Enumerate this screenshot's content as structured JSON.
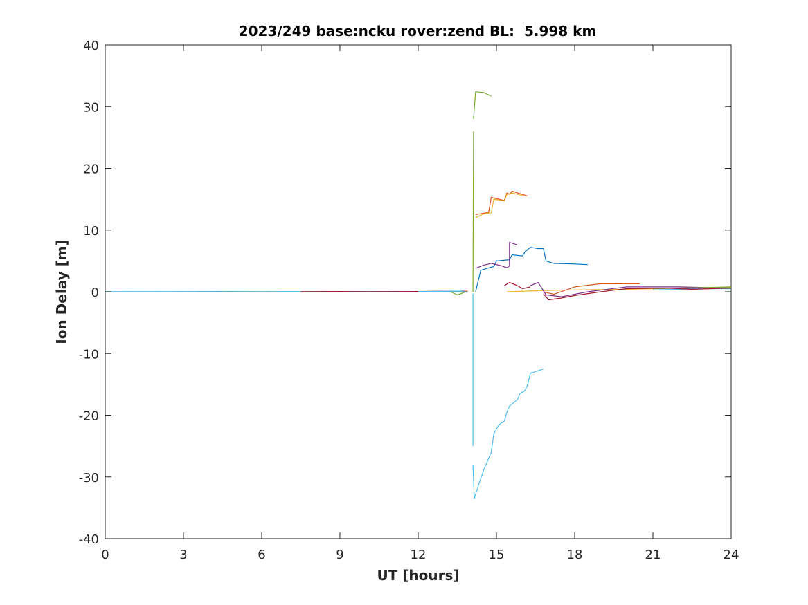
{
  "chart_data": {
    "type": "line",
    "title": "2023/249 base:ncku rover:zend BL:  5.998 km",
    "xlabel": "UT [hours]",
    "ylabel": "Ion Delay [m]",
    "xlim": [
      0,
      24
    ],
    "ylim": [
      -40,
      40
    ],
    "xticks": [
      0,
      3,
      6,
      9,
      12,
      15,
      18,
      21,
      24
    ],
    "yticks": [
      -40,
      -30,
      -20,
      -10,
      0,
      10,
      20,
      30,
      40
    ],
    "grid": false,
    "legend": "none",
    "series": [
      {
        "color": "#0072BD",
        "segments": [
          [
            [
              0,
              0
            ],
            [
              2.5,
              0
            ],
            [
              4.8,
              0.05
            ],
            [
              6,
              0
            ],
            [
              9,
              0.02
            ],
            [
              12,
              0.03
            ],
            [
              13.8,
              0.1
            ]
          ],
          [
            [
              14.2,
              0
            ],
            [
              14.4,
              3.5
            ],
            [
              14.8,
              4.0
            ],
            [
              14.9,
              4.1
            ],
            [
              15.0,
              5.0
            ],
            [
              15.5,
              5.2
            ],
            [
              15.6,
              6.0
            ],
            [
              16.0,
              5.8
            ],
            [
              16.1,
              6.5
            ],
            [
              16.3,
              7.2
            ],
            [
              16.6,
              7.0
            ],
            [
              16.8,
              7.0
            ],
            [
              16.9,
              5.0
            ],
            [
              17.2,
              4.6
            ],
            [
              18.0,
              4.5
            ],
            [
              18.5,
              4.4
            ]
          ],
          [
            [
              20.5,
              0.5
            ],
            [
              21.5,
              0.6
            ],
            [
              22.5,
              0.5
            ],
            [
              23.5,
              0.6
            ],
            [
              24,
              0.5
            ]
          ]
        ]
      },
      {
        "color": "#D95319",
        "segments": [
          [
            [
              12,
              0.05
            ],
            [
              13.9,
              0.1
            ]
          ],
          [
            [
              14.2,
              12.5
            ],
            [
              14.6,
              12.8
            ],
            [
              14.7,
              12.9
            ],
            [
              14.8,
              15.3
            ],
            [
              15.3,
              14.8
            ],
            [
              15.4,
              16.0
            ],
            [
              15.5,
              15.8
            ],
            [
              15.6,
              16.3
            ],
            [
              16.2,
              15.5
            ]
          ],
          [
            [
              16.8,
              0
            ],
            [
              17.2,
              -0.4
            ],
            [
              18.0,
              0.8
            ],
            [
              19.0,
              1.3
            ],
            [
              20.5,
              1.3
            ]
          ],
          [
            [
              20.5,
              0.5
            ],
            [
              22.0,
              0.6
            ],
            [
              24,
              0.7
            ]
          ]
        ]
      },
      {
        "color": "#EDB120",
        "segments": [
          [
            [
              4.5,
              0
            ],
            [
              6,
              0
            ],
            [
              9,
              0
            ],
            [
              12,
              0.05
            ],
            [
              13.8,
              0.1
            ]
          ],
          [
            [
              14.2,
              12.0
            ],
            [
              14.5,
              12.6
            ],
            [
              14.8,
              12.8
            ],
            [
              14.9,
              15.0
            ],
            [
              15.3,
              14.7
            ],
            [
              15.4,
              15.8
            ],
            [
              15.6,
              16.0
            ],
            [
              16.0,
              15.6
            ]
          ],
          [
            [
              15.4,
              0
            ],
            [
              16.8,
              0.2
            ],
            [
              18.0,
              0.3
            ],
            [
              20.0,
              0.4
            ],
            [
              22.0,
              0.6
            ],
            [
              24,
              0.7
            ]
          ]
        ]
      },
      {
        "color": "#7E2F8E",
        "segments": [
          [
            [
              7.5,
              0
            ],
            [
              9,
              0.05
            ],
            [
              12,
              0.05
            ],
            [
              13.8,
              0.1
            ]
          ],
          [
            [
              14.2,
              3.8
            ],
            [
              14.5,
              4.3
            ],
            [
              14.8,
              4.6
            ],
            [
              15.0,
              4.4
            ],
            [
              15.2,
              4.2
            ],
            [
              15.4,
              3.9
            ],
            [
              15.5,
              4.2
            ],
            [
              15.5,
              8.0
            ],
            [
              15.8,
              7.6
            ]
          ],
          [
            [
              16.3,
              1.0
            ],
            [
              16.6,
              1.5
            ],
            [
              16.9,
              -0.5
            ],
            [
              17.5,
              -0.8
            ],
            [
              18.5,
              0.0
            ],
            [
              20.0,
              0.8
            ],
            [
              22.0,
              0.8
            ],
            [
              24,
              0.6
            ]
          ]
        ]
      },
      {
        "color": "#77AC30",
        "segments": [
          [
            [
              3.5,
              0
            ],
            [
              5,
              0.02
            ]
          ],
          [
            [
              13.2,
              0.1
            ],
            [
              13.5,
              -0.5
            ],
            [
              13.9,
              0.1
            ]
          ],
          [
            [
              14.1,
              0
            ],
            [
              14.12,
              26.0
            ]
          ],
          [
            [
              14.12,
              28.0
            ],
            [
              14.2,
              32.4
            ],
            [
              14.5,
              32.3
            ],
            [
              14.8,
              31.7
            ]
          ],
          [
            [
              21.0,
              0.5
            ],
            [
              22.0,
              0.6
            ],
            [
              23.0,
              0.7
            ],
            [
              24,
              0.8
            ]
          ]
        ]
      },
      {
        "color": "#4DBEEE",
        "segments": [
          [
            [
              0,
              0
            ],
            [
              2,
              0.02
            ],
            [
              4,
              0
            ],
            [
              6,
              0.02
            ],
            [
              12,
              0.03
            ],
            [
              13.6,
              0.1
            ],
            [
              13.9,
              -0.1
            ]
          ],
          [
            [
              14.1,
              -0.3
            ],
            [
              14.1,
              -25.0
            ]
          ],
          [
            [
              14.1,
              -28.0
            ],
            [
              14.15,
              -33.5
            ],
            [
              14.3,
              -31.5
            ],
            [
              14.5,
              -29.0
            ],
            [
              14.8,
              -26.0
            ],
            [
              14.9,
              -23.0
            ],
            [
              15.1,
              -21.5
            ],
            [
              15.3,
              -21.0
            ],
            [
              15.4,
              -19.5
            ],
            [
              15.5,
              -18.5
            ],
            [
              15.8,
              -17.5
            ],
            [
              15.9,
              -16.5
            ],
            [
              16.1,
              -16.0
            ],
            [
              16.2,
              -15.0
            ],
            [
              16.3,
              -13.2
            ],
            [
              16.6,
              -12.8
            ],
            [
              16.8,
              -12.5
            ]
          ],
          [
            [
              21.0,
              0.3
            ],
            [
              22.0,
              0.4
            ],
            [
              23.0,
              0.5
            ],
            [
              24,
              0.5
            ]
          ]
        ]
      },
      {
        "color": "#A2142F",
        "segments": [
          [
            [
              7.5,
              0
            ],
            [
              9,
              0.05
            ],
            [
              10,
              0
            ],
            [
              12,
              0.05
            ]
          ],
          [
            [
              15.3,
              1.0
            ],
            [
              15.5,
              1.5
            ],
            [
              15.8,
              1.0
            ],
            [
              16.0,
              0.5
            ],
            [
              16.3,
              0.8
            ]
          ],
          [
            [
              16.8,
              -0.3
            ],
            [
              17.0,
              -1.3
            ],
            [
              17.5,
              -1.0
            ],
            [
              18.0,
              -0.6
            ],
            [
              19.0,
              0.0
            ],
            [
              20.0,
              0.5
            ],
            [
              21.5,
              0.6
            ],
            [
              22.5,
              0.4
            ],
            [
              24,
              0.6
            ]
          ]
        ]
      }
    ]
  }
}
